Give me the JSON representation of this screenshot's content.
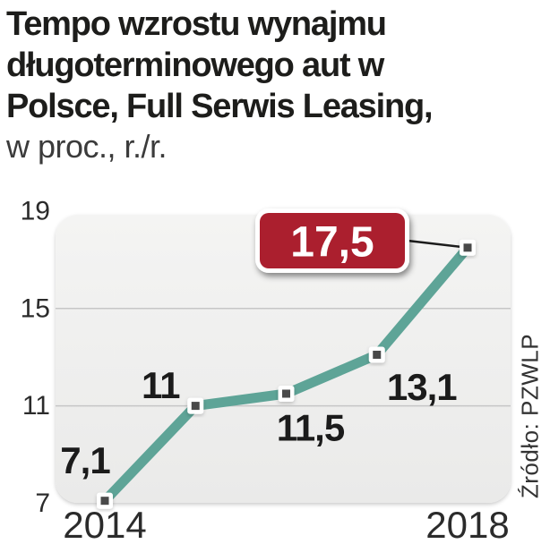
{
  "title": {
    "lines": [
      "Tempo wzrostu wynajmu",
      "długoterminowego aut w",
      "Polsce, Full Serwis Leasing,"
    ],
    "subtitle": "w proc., r./r."
  },
  "source": "Źródło: PZWLP",
  "colors": {
    "line": "#5ea497",
    "badge_fill": "#ab1f2e",
    "badge_border": "#ffffff",
    "badge_text": "#ffffff",
    "plot_bg_top": "#f4f4f3",
    "plot_bg_bottom": "#eaeae9",
    "grid": "#c6c6c6",
    "axis_text": "#2b2b2b",
    "label_text": "#1b1b1b",
    "marker_fill": "#ffffff",
    "marker_inner": "#4a4a4a",
    "connector": "#1c1c1c"
  },
  "chart_data": {
    "type": "line",
    "x": [
      2014,
      2015,
      2016,
      2017,
      2018
    ],
    "values": [
      7.1,
      11,
      11.5,
      13.1,
      17.5
    ],
    "point_labels": [
      "7,1",
      "11",
      "11,5",
      "13,1",
      "17,5"
    ],
    "highlight_index": 4,
    "highlight_label": "17,5",
    "y_ticks": [
      19,
      15,
      11,
      7
    ],
    "y_tick_labels": [
      "19",
      "15",
      "11",
      "7"
    ],
    "x_tick_labels": [
      "2014",
      "2018"
    ],
    "ylim": [
      7,
      19
    ],
    "xlabel": "",
    "ylabel": "w proc., r./r.",
    "title": "Tempo wzrostu wynajmu długoterminowego aut w Polsce, Full Serwis Leasing",
    "legend": false,
    "grid": "horizontal"
  }
}
